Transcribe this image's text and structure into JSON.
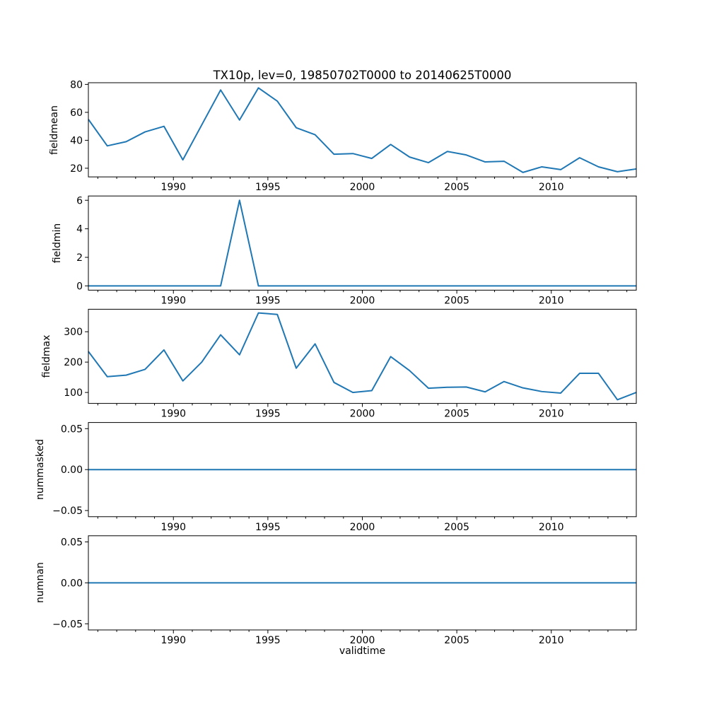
{
  "figure": {
    "title": "TX10p, lev=0, 19850702T0000 to 20140625T0000",
    "xlabel": "validtime",
    "background_color": "#ffffff",
    "axis_color": "#000000",
    "line_color": "#1f77b4"
  },
  "chart_data": {
    "type": "line",
    "title": "TX10p, lev=0, 19850702T0000 to 20140625T0000",
    "xlabel": "validtime",
    "legend": "none",
    "grid": false,
    "line_color": "#1f77b4",
    "xlim": [
      1985.5,
      2014.5
    ],
    "xticks": [
      1990,
      1995,
      2000,
      2005,
      2010
    ],
    "xtick_labels": [
      "1990",
      "1995",
      "2000",
      "2005",
      "2010"
    ],
    "xminor_step": 1,
    "x": [
      1985.5,
      1986.5,
      1987.5,
      1988.5,
      1989.5,
      1990.5,
      1991.5,
      1992.5,
      1993.5,
      1994.5,
      1995.5,
      1996.5,
      1997.5,
      1998.5,
      1999.5,
      2000.5,
      2001.5,
      2002.5,
      2003.5,
      2004.5,
      2005.5,
      2006.5,
      2007.5,
      2008.5,
      2009.5,
      2010.5,
      2011.5,
      2012.5,
      2013.5,
      2014.5
    ],
    "subplots": [
      {
        "ylabel": "fieldmean",
        "ylim": [
          13.8,
          81.2
        ],
        "yticks": [
          20,
          40,
          60,
          80
        ],
        "ytick_labels": [
          "20",
          "40",
          "60",
          "80"
        ],
        "values": [
          55,
          36,
          39,
          46,
          50,
          26,
          51,
          76,
          54.5,
          77.5,
          68,
          49,
          44,
          30,
          30.5,
          27,
          37,
          28,
          24,
          32,
          29.5,
          24.5,
          25,
          17,
          21,
          19,
          27.5,
          21,
          17.5,
          19.5
        ]
      },
      {
        "ylabel": "fieldmin",
        "ylim": [
          -0.3,
          6.3
        ],
        "yticks": [
          0,
          2,
          4,
          6
        ],
        "ytick_labels": [
          "0",
          "2",
          "4",
          "6"
        ],
        "values": [
          0,
          0,
          0,
          0,
          0,
          0,
          0,
          0,
          6,
          0,
          0,
          0,
          0,
          0,
          0,
          0,
          0,
          0,
          0,
          0,
          0,
          0,
          0,
          0,
          0,
          0,
          0,
          0,
          0,
          0
        ]
      },
      {
        "ylabel": "fieldmax",
        "ylim": [
          63.9,
          374.1
        ],
        "yticks": [
          100,
          200,
          300
        ],
        "ytick_labels": [
          "100",
          "200",
          "300"
        ],
        "values": [
          235,
          152,
          157,
          176,
          240,
          138,
          200,
          290,
          224,
          362,
          357,
          180,
          260,
          133,
          100,
          106,
          218,
          172,
          114,
          117,
          118,
          102,
          136,
          115,
          103,
          98,
          163,
          163,
          76,
          100
        ]
      },
      {
        "ylabel": "nummasked",
        "ylim": [
          -0.0575,
          0.0575
        ],
        "yticks": [
          0.05,
          0,
          -0.05
        ],
        "ytick_labels": [
          "0.05",
          "0.00",
          "−0.05"
        ],
        "values": [
          0,
          0,
          0,
          0,
          0,
          0,
          0,
          0,
          0,
          0,
          0,
          0,
          0,
          0,
          0,
          0,
          0,
          0,
          0,
          0,
          0,
          0,
          0,
          0,
          0,
          0,
          0,
          0,
          0,
          0
        ]
      },
      {
        "ylabel": "numnan",
        "ylim": [
          -0.0575,
          0.0575
        ],
        "yticks": [
          0.05,
          0,
          -0.05
        ],
        "ytick_labels": [
          "0.05",
          "0.00",
          "−0.05"
        ],
        "values": [
          0,
          0,
          0,
          0,
          0,
          0,
          0,
          0,
          0,
          0,
          0,
          0,
          0,
          0,
          0,
          0,
          0,
          0,
          0,
          0,
          0,
          0,
          0,
          0,
          0,
          0,
          0,
          0,
          0,
          0
        ]
      }
    ]
  }
}
